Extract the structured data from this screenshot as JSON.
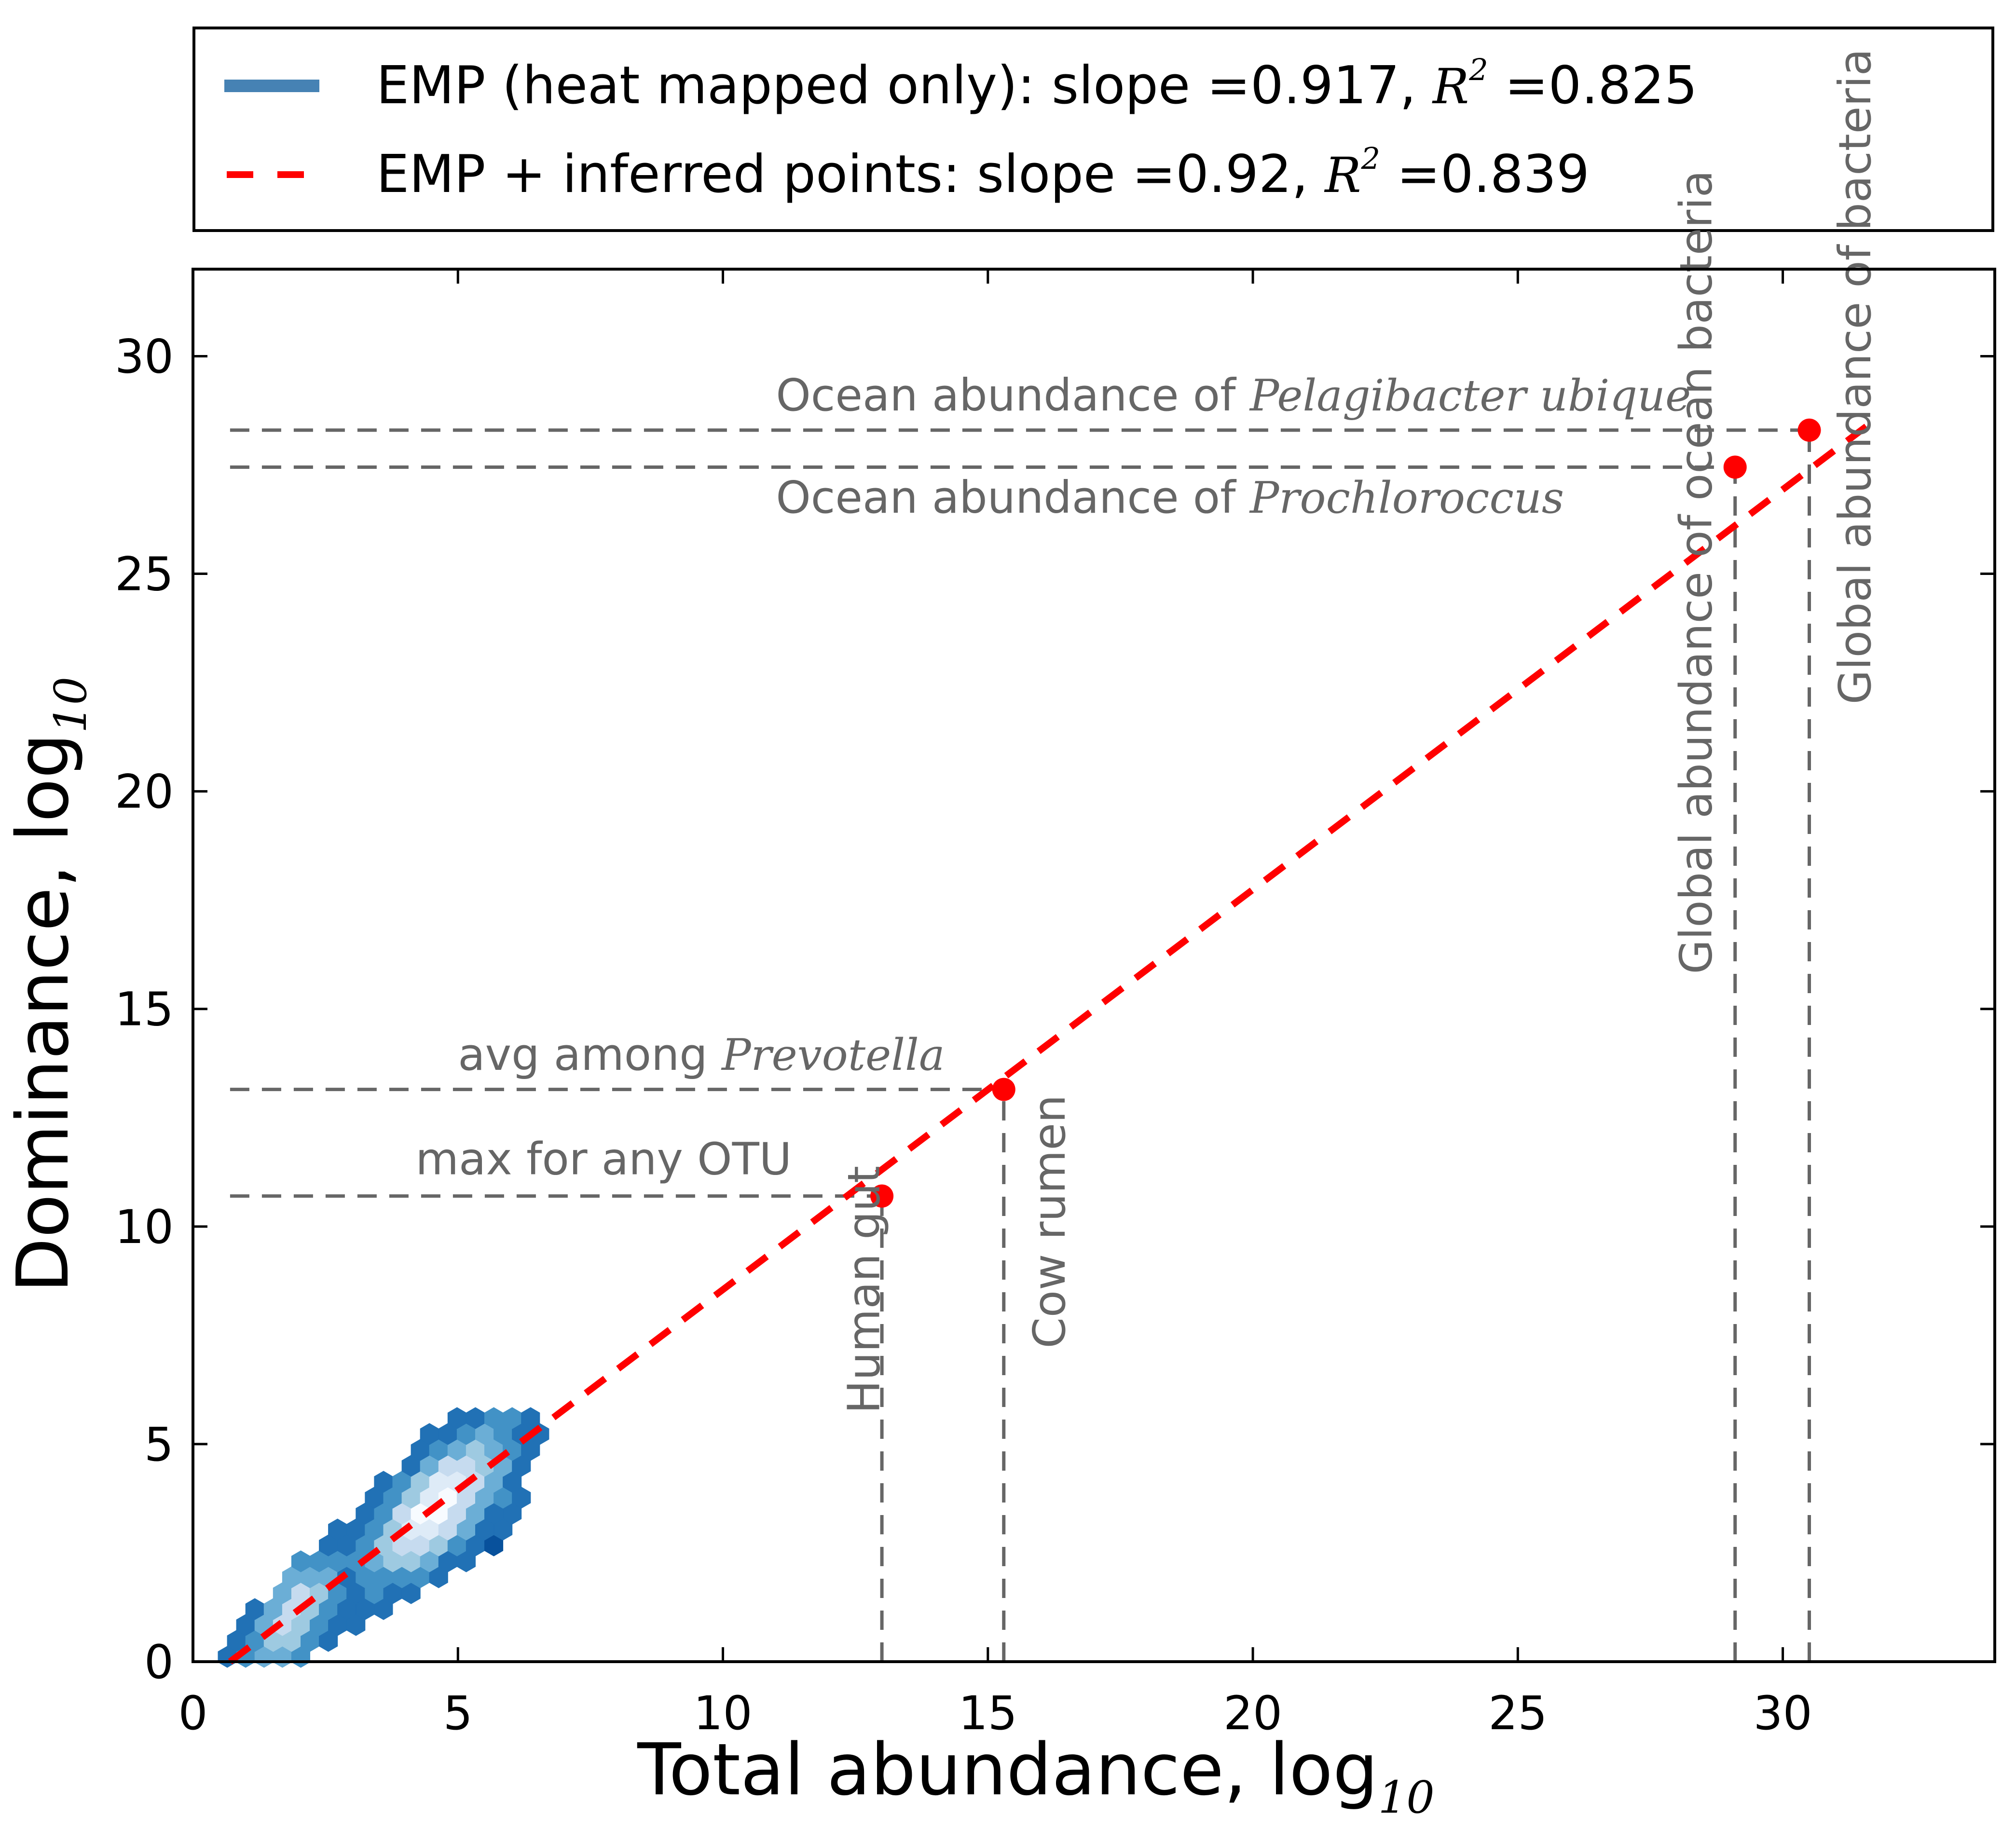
{
  "chart_data": {
    "type": "scatter",
    "xlabel": "Total abundance, log",
    "xlabel_sub": "10",
    "ylabel": "Dominance, log",
    "ylabel_sub": "10",
    "xlim": [
      0,
      34
    ],
    "ylim": [
      0,
      32
    ],
    "xticks": [
      0,
      5,
      10,
      15,
      20,
      25,
      30
    ],
    "yticks": [
      0,
      5,
      10,
      15,
      20,
      25,
      30
    ],
    "grid": false,
    "legend": {
      "placement": "above plot",
      "entries": [
        {
          "style": "solid",
          "color": "#4682b4",
          "text": "EMP (heat mapped only): slope =0.917,",
          "r2_symbol": "R",
          "r2_exp": "2",
          "r2_value": "=0.825"
        },
        {
          "style": "dashed",
          "color": "#ff0000",
          "text": "EMP + inferred points: slope =0.92,",
          "r2_symbol": "R",
          "r2_exp": "2",
          "r2_value": "=0.839"
        }
      ]
    },
    "fit_line": {
      "name": "EMP + inferred points",
      "color": "#ff0000",
      "style": "dashed",
      "x": [
        0.7,
        31.7
      ],
      "y": [
        0.0,
        28.5
      ]
    },
    "hexbin": {
      "name": "EMP (heat mapped only)",
      "colormap": "Blues",
      "x_range": [
        0.3,
        6.6
      ],
      "y_range": [
        0.0,
        5.8
      ],
      "slope": 0.917
    },
    "points": [
      {
        "label": "Human gut",
        "x": 13.0,
        "y": 10.7
      },
      {
        "label": "Cow rumen",
        "x": 15.3,
        "y": 13.15
      },
      {
        "label": "Global abundance of ocean bacteria",
        "x": 29.1,
        "y": 27.45
      },
      {
        "label": "Global abundance of bacteria",
        "x": 30.5,
        "y": 28.3
      }
    ],
    "ref_lines": {
      "horizontal": [
        {
          "y": 28.3,
          "x_from": 0.7,
          "x_to": 30.5
        },
        {
          "y": 27.45,
          "x_from": 0.7,
          "x_to": 29.1
        },
        {
          "y": 13.15,
          "x_from": 0.7,
          "x_to": 15.3
        },
        {
          "y": 10.7,
          "x_from": 0.7,
          "x_to": 13.0
        }
      ],
      "vertical": [
        {
          "x": 13.0,
          "y_from": 0,
          "y_to": 10.7
        },
        {
          "x": 15.3,
          "y_from": 0,
          "y_to": 13.15
        },
        {
          "x": 29.1,
          "y_from": 0,
          "y_to": 27.45
        },
        {
          "x": 30.5,
          "y_from": 0,
          "y_to": 28.3
        }
      ]
    },
    "annotations": [
      {
        "text": "Ocean abundance of ",
        "italic": "Pelagibacter ubique",
        "x": 11.0,
        "y": 28.75,
        "rotate": 0
      },
      {
        "text": "Ocean abundance of ",
        "italic": "Prochloroccus",
        "x": 11.0,
        "y": 26.4,
        "rotate": 0
      },
      {
        "text": "avg among ",
        "italic": "Prevotella",
        "x": 5.0,
        "y": 13.6,
        "rotate": 0
      },
      {
        "text": "max for any OTU",
        "italic": "",
        "x": 4.2,
        "y": 11.2,
        "rotate": 0
      },
      {
        "text": "Human gut",
        "italic": "",
        "x": 12.95,
        "y": 5.7,
        "rotate": -90
      },
      {
        "text": "Cow rumen",
        "italic": "",
        "x": 16.45,
        "y": 7.2,
        "rotate": -90
      },
      {
        "text": "Global abundance of ocean bacteria",
        "italic": "",
        "x": 28.65,
        "y": 15.8,
        "rotate": -90
      },
      {
        "text": "Global abundance of bacteria",
        "italic": "",
        "x": 31.65,
        "y": 22.0,
        "rotate": -90
      }
    ]
  }
}
